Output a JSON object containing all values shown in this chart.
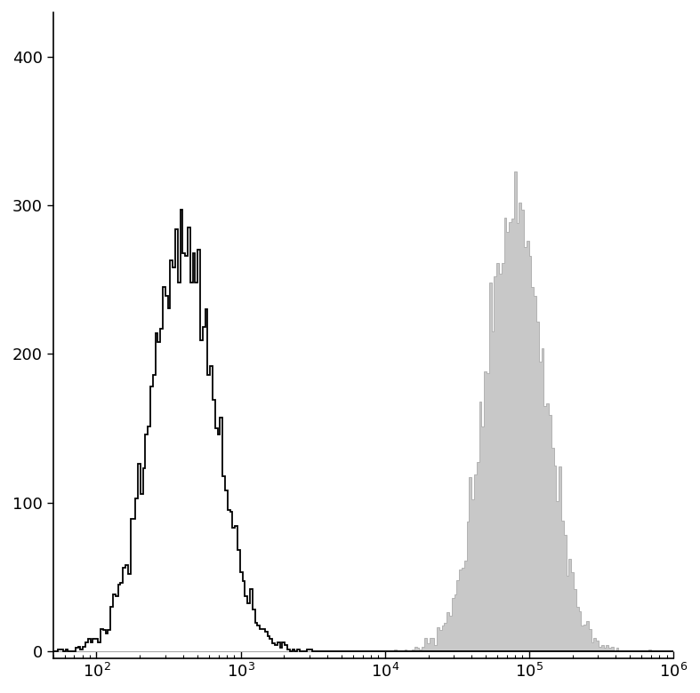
{
  "xlim": [
    50,
    1000000
  ],
  "ylim": [
    -5,
    430
  ],
  "yticks": [
    0,
    100,
    200,
    300,
    400
  ],
  "background_color": "#ffffff",
  "black_hist_color": "#000000",
  "gray_hist_fill_color": "#c8c8c8",
  "gray_hist_edge_color": "#aaaaaa",
  "figsize": [
    7.87,
    7.8
  ],
  "dpi": 100,
  "black_peak_log": 2.6,
  "black_std": 0.52,
  "black_n": 9000,
  "gray_peak_log": 4.9,
  "gray_std": 0.48,
  "gray_n": 9000,
  "n_bins": 250,
  "seed": 42
}
